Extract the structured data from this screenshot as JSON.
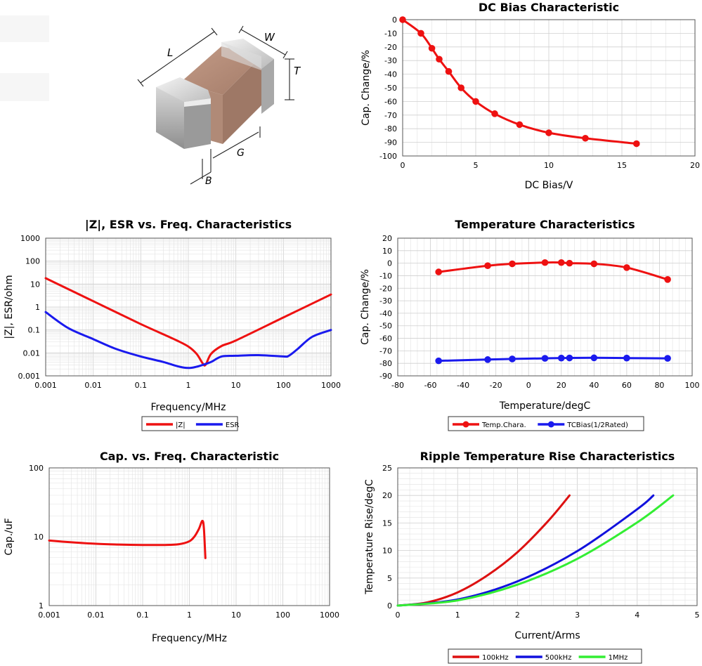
{
  "chart_data": [
    {
      "id": "dc_bias",
      "type": "line",
      "title": "DC Bias Characteristic",
      "xlabel": "DC Bias/V",
      "ylabel": "Cap. Change/%",
      "xlim": [
        0,
        20
      ],
      "ylim": [
        -100,
        0
      ],
      "xticks": [
        0,
        5,
        10,
        15,
        20
      ],
      "yticks": [
        0,
        -10,
        -20,
        -30,
        -40,
        -50,
        -60,
        -70,
        -80,
        -90,
        -100
      ],
      "grid": true,
      "series": [
        {
          "color": "#ee1111",
          "markers": true,
          "x": [
            0,
            1.25,
            2,
            2.5,
            3.15,
            4,
            5,
            6.3,
            8,
            10,
            12.5,
            16
          ],
          "y": [
            0,
            -10,
            -21,
            -29,
            -38,
            -50,
            -60,
            -69,
            -77,
            -83,
            -87,
            -91
          ]
        }
      ]
    },
    {
      "id": "z_esr",
      "type": "line",
      "title": "|Z|, ESR vs. Freq. Characteristics",
      "xlabel": "Frequency/MHz",
      "ylabel": "|Z|, ESR/ohm",
      "xscale": "log",
      "yscale": "log",
      "xlim": [
        0.001,
        1000
      ],
      "ylim": [
        0.001,
        1000
      ],
      "xticks": [
        "0.001",
        "0.01",
        "0.1",
        "1",
        "10",
        "100",
        "1000"
      ],
      "yticks": [
        "1000",
        "100",
        "10",
        "1",
        "0.1",
        "0.01",
        "0.001"
      ],
      "grid": true,
      "legend": "bottom",
      "series": [
        {
          "name": "|Z|",
          "color": "#ee1111",
          "x": [
            0.001,
            0.01,
            0.1,
            0.5,
            1,
            1.5,
            2,
            2.3,
            3,
            5,
            10,
            100,
            1000
          ],
          "y": [
            18,
            1.8,
            0.18,
            0.04,
            0.019,
            0.009,
            0.0035,
            0.003,
            0.009,
            0.02,
            0.035,
            0.35,
            3.5
          ]
        },
        {
          "name": "ESR",
          "color": "#1a1aee",
          "x": [
            0.001,
            0.003,
            0.01,
            0.03,
            0.1,
            0.3,
            0.6,
            1,
            1.5,
            2,
            3,
            5,
            10,
            30,
            100,
            130,
            200,
            400,
            1000
          ],
          "y": [
            0.6,
            0.12,
            0.04,
            0.015,
            0.007,
            0.004,
            0.0026,
            0.0022,
            0.0025,
            0.003,
            0.004,
            0.007,
            0.0075,
            0.008,
            0.007,
            0.0075,
            0.015,
            0.05,
            0.1
          ]
        }
      ]
    },
    {
      "id": "temp",
      "type": "line",
      "title": "Temperature Characteristics",
      "xlabel": "Temperature/degC",
      "ylabel": "Cap. Change/%",
      "xlim": [
        -80,
        100
      ],
      "ylim": [
        -90,
        20
      ],
      "xticks": [
        -80,
        -60,
        -40,
        -20,
        0,
        20,
        40,
        60,
        80,
        100
      ],
      "yticks": [
        20,
        10,
        0,
        -10,
        -20,
        -30,
        -40,
        -50,
        -60,
        -70,
        -80,
        -90
      ],
      "grid": true,
      "legend": "bottom",
      "series": [
        {
          "name": "Temp.Chara.",
          "color": "#ee1111",
          "markers": true,
          "x": [
            -55,
            -25,
            -10,
            10,
            20,
            25,
            40,
            60,
            85
          ],
          "y": [
            -7,
            -2,
            -0.5,
            0.5,
            0.5,
            0,
            -0.5,
            -3.5,
            -13
          ]
        },
        {
          "name": "TCBias(1/2Rated)",
          "color": "#1a1aee",
          "markers": true,
          "x": [
            -55,
            -25,
            -10,
            10,
            20,
            25,
            40,
            60,
            85
          ],
          "y": [
            -78,
            -77,
            -76.5,
            -76,
            -75.8,
            -75.7,
            -75.6,
            -75.8,
            -76
          ]
        }
      ]
    },
    {
      "id": "cap_freq",
      "type": "line",
      "title": "Cap. vs. Freq. Characteristic",
      "xlabel": "Frequency/MHz",
      "ylabel": "Cap./uF",
      "xscale": "log",
      "yscale": "log",
      "xlim": [
        0.001,
        1000
      ],
      "ylim": [
        1,
        100
      ],
      "xticks": [
        "0.001",
        "0.01",
        "0.1",
        "1",
        "10",
        "100",
        "1000"
      ],
      "yticks": [
        "100",
        "10",
        "1"
      ],
      "grid": true,
      "series": [
        {
          "color": "#ee1111",
          "x": [
            0.001,
            0.003,
            0.01,
            0.03,
            0.1,
            0.3,
            0.6,
            1,
            1.3,
            1.6,
            1.9,
            2.05,
            2.2
          ],
          "y": [
            8.8,
            8.3,
            7.9,
            7.7,
            7.6,
            7.6,
            7.8,
            8.6,
            10.2,
            13,
            17,
            13,
            4.9
          ]
        }
      ]
    },
    {
      "id": "ripple",
      "type": "line",
      "title": "Ripple Temperature Rise Characteristics",
      "xlabel": "Current/Arms",
      "ylabel": "Temperature Rise/degC",
      "xlim": [
        0,
        5
      ],
      "ylim": [
        0,
        25
      ],
      "xticks": [
        0,
        1,
        2,
        3,
        4,
        5
      ],
      "yticks": [
        25,
        20,
        15,
        10,
        5,
        0
      ],
      "grid": true,
      "legend": "bottom",
      "series": [
        {
          "name": "100kHz",
          "color": "#dd1111",
          "x": [
            0,
            0.5,
            1,
            1.5,
            2,
            2.5,
            2.87
          ],
          "y": [
            0,
            0.6,
            2.4,
            5.5,
            9.7,
            15.2,
            20
          ]
        },
        {
          "name": "500kHz",
          "color": "#1111dd",
          "x": [
            0,
            1,
            2,
            3,
            4,
            4.27
          ],
          "y": [
            0,
            1.1,
            4.4,
            9.9,
            17.5,
            20
          ]
        },
        {
          "name": "1MHz",
          "color": "#33ee33",
          "x": [
            0,
            1,
            2,
            3,
            4,
            4.6
          ],
          "y": [
            0,
            0.95,
            3.8,
            8.5,
            15.1,
            20
          ]
        }
      ]
    }
  ],
  "component_image": {
    "dimension_labels": [
      "L",
      "W",
      "T",
      "B",
      "G"
    ]
  }
}
